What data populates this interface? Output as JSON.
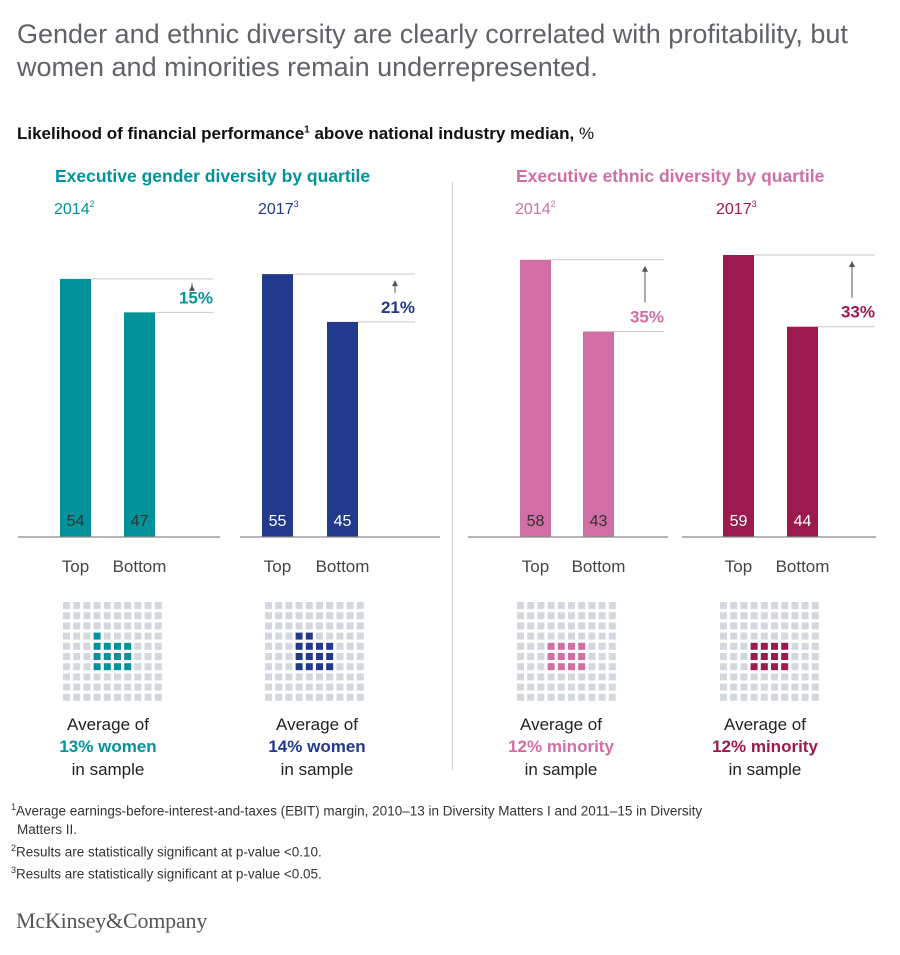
{
  "headline": "Gender and ethnic diversity are clearly correlated with profitability, but women and minorities remain underrepresented.",
  "subtitle": {
    "bold": "Likelihood of financial performance",
    "sup": "1",
    "rest": " above national industry median,",
    "unit": " %"
  },
  "colors": {
    "teal": "#02939a",
    "navy": "#233a8c",
    "pink": "#d16ea3",
    "maroon": "#9c1a4d",
    "gray_square": "#d3d8de",
    "axis": "#8a8a8a"
  },
  "chart_data": [
    {
      "type": "bar",
      "group_title": "Executive gender diversity by quartile",
      "year": "2014",
      "year_sup": "2",
      "categories": [
        "Top",
        "Bottom"
      ],
      "values": [
        54,
        47
      ],
      "difference": "15%",
      "sample_count": 13,
      "sample_line1": "Average of",
      "sample_line2": "13% women",
      "sample_line3": "in sample",
      "color": "#02939a"
    },
    {
      "type": "bar",
      "group_title": "Executive gender diversity by quartile",
      "year": "2017",
      "year_sup": "3",
      "categories": [
        "Top",
        "Bottom"
      ],
      "values": [
        55,
        45
      ],
      "difference": "21%",
      "sample_count": 14,
      "sample_line1": "Average of",
      "sample_line2": "14% women",
      "sample_line3": "in sample",
      "color": "#233a8c"
    },
    {
      "type": "bar",
      "group_title": "Executive ethnic diversity by quartile",
      "year": "2014",
      "year_sup": "2",
      "categories": [
        "Top",
        "Bottom"
      ],
      "values": [
        58,
        43
      ],
      "difference": "35%",
      "sample_count": 12,
      "sample_line1": "Average of",
      "sample_line2": "12% minority",
      "sample_line3": "in sample",
      "color": "#d16ea3"
    },
    {
      "type": "bar",
      "group_title": "Executive ethnic diversity by quartile",
      "year": "2017",
      "year_sup": "3",
      "categories": [
        "Top",
        "Bottom"
      ],
      "values": [
        59,
        44
      ],
      "difference": "33%",
      "sample_count": 12,
      "sample_line1": "Average of",
      "sample_line2": "12% minority",
      "sample_line3": "in sample",
      "color": "#9c1a4d"
    }
  ],
  "group_titles": {
    "gender": "Executive gender diversity by quartile",
    "ethnic": "Executive ethnic diversity by quartile"
  },
  "footnotes": {
    "fn1_sup": "1",
    "fn1_text": "Average earnings-before-interest-and-taxes (EBIT) margin, 2010–13 in Diversity Matters I and 2011–15 in Diversity",
    "fn1_cont": "Matters II.",
    "fn2_sup": "2",
    "fn2_text": "Results are statistically significant at p-value <0.10.",
    "fn3_sup": "3",
    "fn3_text": "Results are statistically significant at p-value <0.05."
  },
  "brand": "McKinsey&Company"
}
